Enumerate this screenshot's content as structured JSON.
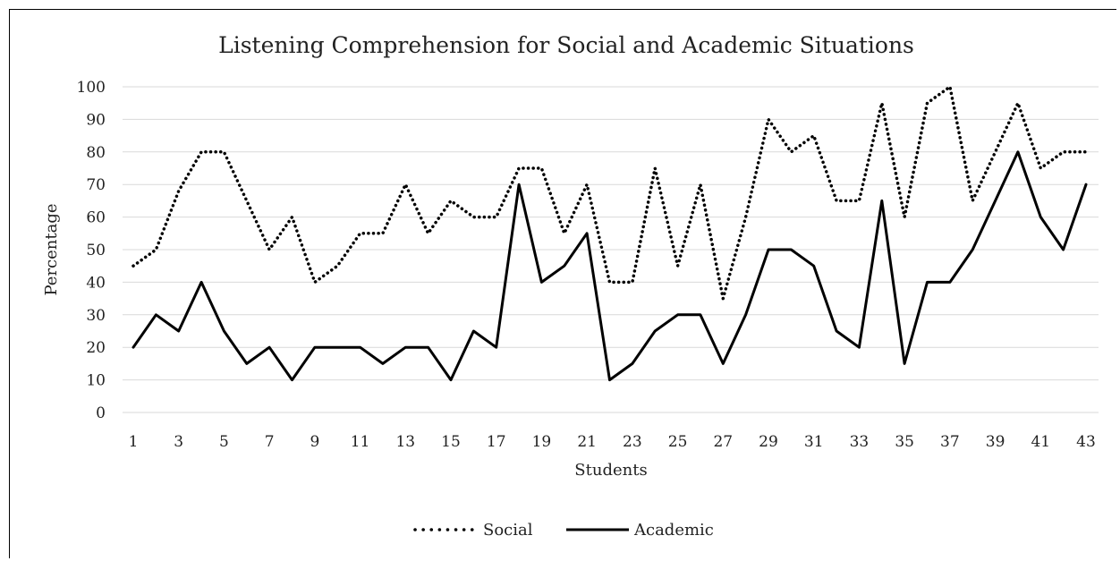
{
  "chart_data": {
    "type": "line",
    "title": "Listening Comprehension for Social and Academic Situations",
    "xlabel": "Students",
    "ylabel": "Percentage",
    "ylim": [
      0,
      100
    ],
    "yticks": [
      "0",
      "10",
      "20",
      "30",
      "40",
      "50",
      "60",
      "70",
      "80",
      "90",
      "100"
    ],
    "xticks": [
      "1",
      "3",
      "5",
      "7",
      "9",
      "11",
      "13",
      "15",
      "17",
      "19",
      "21",
      "23",
      "25",
      "27",
      "29",
      "31",
      "33",
      "35",
      "37",
      "39",
      "41",
      "43"
    ],
    "x": [
      1,
      2,
      3,
      4,
      5,
      6,
      7,
      8,
      9,
      10,
      11,
      12,
      13,
      14,
      15,
      16,
      17,
      18,
      19,
      20,
      21,
      22,
      23,
      24,
      25,
      26,
      27,
      28,
      29,
      30,
      31,
      32,
      33,
      34,
      35,
      36,
      37,
      38,
      39,
      40,
      41,
      42,
      43
    ],
    "grid": true,
    "legend": "bottom",
    "series": [
      {
        "name": "Social",
        "style": "dotted",
        "color": "#000000",
        "values": [
          45,
          50,
          68,
          80,
          80,
          65,
          50,
          60,
          40,
          45,
          55,
          55,
          70,
          55,
          65,
          60,
          60,
          75,
          75,
          55,
          70,
          40,
          40,
          75,
          45,
          70,
          35,
          60,
          90,
          80,
          85,
          65,
          65,
          95,
          60,
          95,
          100,
          65,
          80,
          95,
          75,
          80,
          80
        ]
      },
      {
        "name": "Academic",
        "style": "solid",
        "color": "#000000",
        "values": [
          20,
          30,
          25,
          40,
          25,
          15,
          20,
          10,
          20,
          20,
          20,
          15,
          20,
          20,
          10,
          25,
          20,
          70,
          40,
          45,
          55,
          10,
          15,
          25,
          30,
          30,
          15,
          30,
          50,
          50,
          45,
          25,
          20,
          65,
          15,
          40,
          40,
          50,
          65,
          80,
          60,
          50,
          70
        ]
      }
    ]
  }
}
